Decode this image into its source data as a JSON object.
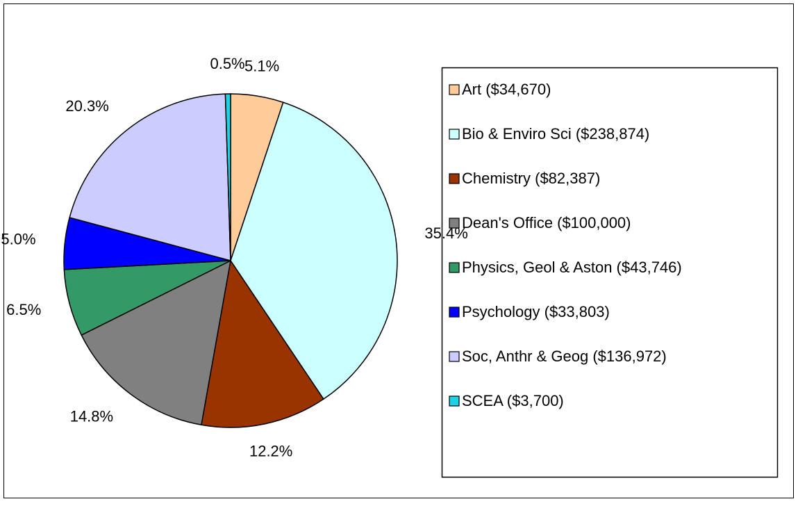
{
  "chart_data": {
    "type": "pie",
    "categories": [
      "Art ($34,670)",
      "Bio & Enviro Sci ($238,874)",
      "Chemistry ($82,387)",
      "Dean's Office ($100,000)",
      "Physics, Geol & Aston ($43,746)",
      "Psychology ($33,803)",
      "Soc, Anthr & Geog ($136,972)",
      "SCEA ($3,700)"
    ],
    "values": [
      5.1,
      35.4,
      12.2,
      14.8,
      6.5,
      5.0,
      20.3,
      0.5
    ],
    "value_labels": [
      "5.1%",
      "35.4%",
      "12.2%",
      "14.8%",
      "6.5%",
      "5.0%",
      "20.3%",
      "0.5%"
    ],
    "colors": [
      "#FFCC99",
      "#CCFFFF",
      "#993300",
      "#808080",
      "#339966",
      "#0000FF",
      "#CCCCFF",
      "#1ED2E6"
    ],
    "legend": "right"
  }
}
